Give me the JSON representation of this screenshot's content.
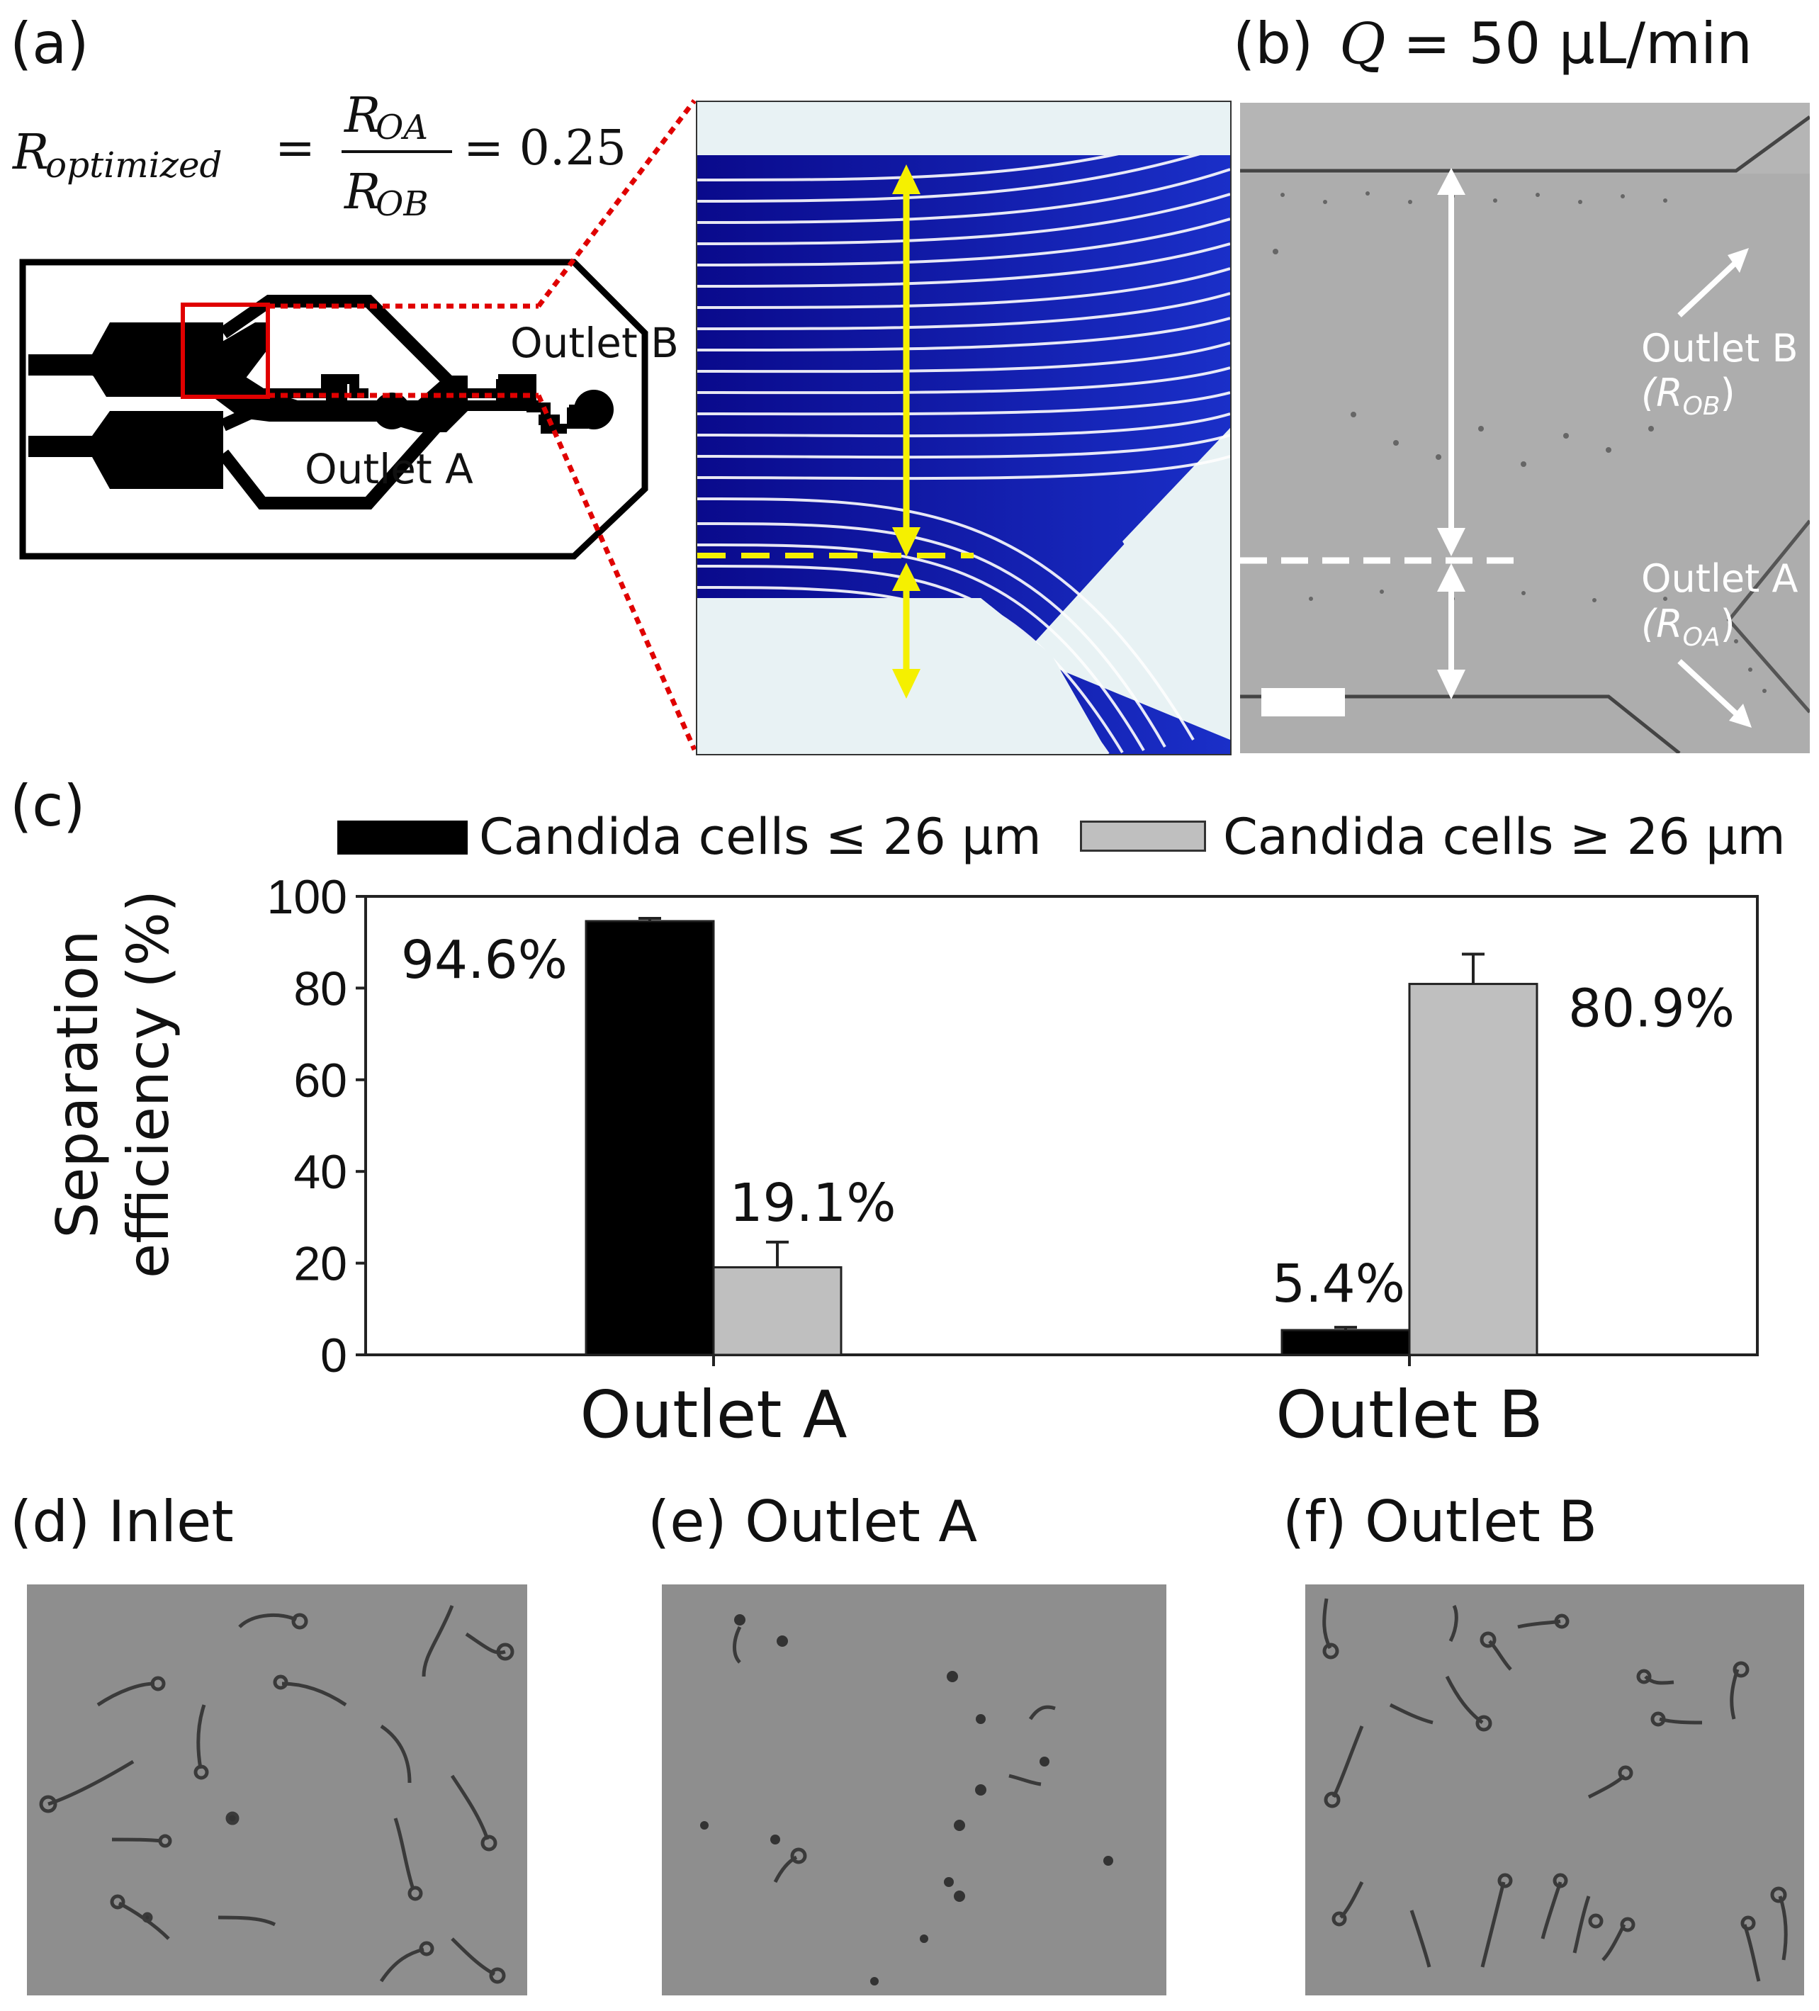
{
  "panels": {
    "a": {
      "label": "(a)",
      "formula": {
        "lhs": "R",
        "lhs_sub": "optimized",
        "num": "R",
        "num_sub": "OA",
        "den": "R",
        "den_sub": "OB",
        "value": "= 0.25"
      },
      "outlet_a": "Outlet A",
      "outlet_b": "Outlet B"
    },
    "b": {
      "label": "(b)",
      "flow_var": "Q",
      "flow_value": "= 50 μL/min",
      "outlet_b": "Outlet B",
      "outlet_b_sub": "(R",
      "outlet_b_sub2": "OB",
      "outlet_b_close": ")",
      "outlet_a": "Outlet A",
      "outlet_a_sub": "(R",
      "outlet_a_sub2": "OA",
      "outlet_a_close": ")"
    },
    "c": {
      "label": "(c)"
    },
    "d": {
      "label": "(d) Inlet"
    },
    "e": {
      "label": "(e) Outlet A"
    },
    "f": {
      "label": "(f) Outlet B"
    }
  },
  "chart_data": {
    "type": "bar",
    "categories": [
      "Outlet A",
      "Outlet B"
    ],
    "series": [
      {
        "name": "Candida cells ≤ 26 μm",
        "values": [
          94.6,
          5.4
        ],
        "errors": [
          0.6,
          0.6
        ],
        "labels": [
          "94.6%",
          "5.4%"
        ],
        "color": "#000000"
      },
      {
        "name": "Candida cells ≥ 26 μm",
        "values": [
          19.1,
          80.9
        ],
        "errors": [
          5.5,
          6.5
        ],
        "labels": [
          "19.1%",
          "80.9%"
        ],
        "color": "#bfbfbf"
      }
    ],
    "ylabel_line1": "Separation",
    "ylabel_line2": "efficiency (%)",
    "ylim": [
      0,
      100
    ],
    "yticks": [
      0,
      20,
      40,
      60,
      80,
      100
    ],
    "grid": false,
    "legend_position": "top"
  }
}
